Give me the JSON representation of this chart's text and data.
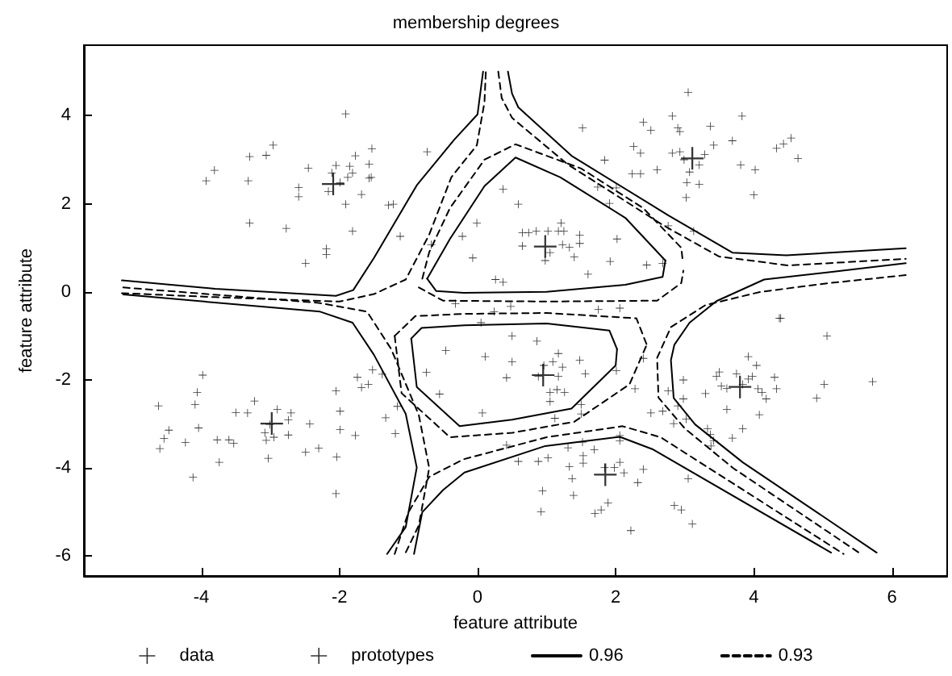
{
  "chart_data": {
    "type": "scatter",
    "title": "membership degrees",
    "xlabel": "feature attribute",
    "ylabel": "feature attribute",
    "xlim": [
      -5.7,
      6.8
    ],
    "ylim": [
      -6.45,
      5.6
    ],
    "xticks": [
      -4,
      -2,
      0,
      2,
      4,
      6
    ],
    "yticks": [
      -6,
      -4,
      -2,
      0,
      2,
      4
    ],
    "grid": false,
    "legend": "bottom",
    "series": [
      {
        "name": "data",
        "marker": "cross",
        "color": "#000000",
        "x": [
          -3.93,
          -3.81,
          -3.3,
          -3.32,
          -3.3,
          -3.06,
          -2.96,
          -2.77,
          -2.59,
          -2.59,
          -2.45,
          -2.49,
          -2.19,
          -2.19,
          -2.16,
          -2.11,
          -2.05,
          -1.99,
          -1.91,
          -1.91,
          -1.88,
          -1.85,
          -1.81,
          -1.81,
          -1.77,
          -1.68,
          -1.57,
          -1.57,
          -1.53,
          -1.54,
          -1.29,
          -1.22,
          -1.12,
          -0.73,
          -0.67,
          -0.22,
          -0.01,
          -0.07,
          3.05,
          1.52,
          1.84,
          2.4,
          2.51,
          2.82,
          2.9,
          2.93,
          3.37,
          3.83,
          2.26,
          2.36,
          2.82,
          2.93,
          3.29,
          3.42,
          3.69,
          2.99,
          3.21,
          3.07,
          2.24,
          2.36,
          2.6,
          3.81,
          4.02,
          3.03,
          3.21,
          3.02,
          4.0,
          4.33,
          4.43,
          4.54,
          4.64,
          1.74,
          2.01,
          1.91,
          2.76,
          3.13,
          0.37,
          0.59,
          0.65,
          0.74,
          0.85,
          1.02,
          1.17,
          1.25,
          1.21,
          1.48,
          1.48,
          0.65,
          1.23,
          1.33,
          0.98,
          1.05,
          1.4,
          1.6,
          2.02,
          1.92,
          2.45,
          2.68,
          0.26,
          0.37,
          4.37,
          0.48,
          0.24,
          -4.62,
          -4.6,
          -4.54,
          -4.47,
          -4.23,
          -4.12,
          -4.09,
          -4.06,
          -4.04,
          -3.98,
          -3.77,
          -3.74,
          -3.6,
          -3.53,
          -3.5,
          -3.33,
          -3.23,
          -3.08,
          -3.06,
          -3.03,
          -3.01,
          -2.95,
          -2.9,
          -2.74,
          -2.74,
          -2.7,
          -2.49,
          -2.43,
          -2.3,
          -2.05,
          -1.99,
          -1.99,
          -2.04,
          -2.05,
          -1.77,
          -1.74,
          -1.68,
          -1.58,
          -1.52,
          -1.38,
          -1.33,
          -1.19,
          -1.16,
          -0.74,
          -0.55,
          -0.46,
          -0.32,
          0.05,
          0.11,
          0.5,
          0.5,
          0.42,
          0.86,
          0.96,
          1.09,
          1.17,
          1.23,
          1.17,
          1.05,
          1.26,
          1.05,
          1.15,
          0.88,
          1.48,
          1.56,
          1.5,
          1.5,
          1.12,
          0.07,
          2.01,
          2.28,
          2.4,
          0.42,
          0.59,
          0.88,
          1.02,
          1.31,
          1.33,
          1.53,
          1.53,
          1.69,
          1.52,
          1.37,
          1.39,
          0.94,
          0.92,
          1.7,
          1.79,
          1.89,
          1.84,
          1.98,
          2.06,
          2.12,
          2.32,
          2.4,
          2.22,
          2.06,
          2.06,
          2.85,
          2.95,
          3.11,
          3.05,
          1.75,
          2.06,
          2.51,
          2.68,
          2.84,
          2.9,
          2.98,
          2.76,
          2.98,
          3.02,
          3.3,
          3.33,
          3.37,
          3.42,
          3.38,
          3.46,
          3.5,
          3.53,
          3.61,
          3.61,
          3.69,
          3.75,
          3.84,
          3.92,
          3.98,
          4.04,
          4.06,
          4.08,
          4.12,
          4.18,
          4.3,
          4.33,
          3.84,
          3.92,
          4.39,
          4.91,
          5.02,
          5.06,
          5.72
        ],
        "values": [
          2.52,
          2.76,
          3.07,
          2.52,
          1.56,
          3.1,
          3.33,
          1.44,
          2.37,
          2.16,
          2.81,
          0.65,
          0.98,
          0.85,
          2.28,
          2.7,
          2.87,
          2.48,
          4.04,
          1.99,
          2.6,
          2.85,
          2.7,
          1.38,
          3.09,
          2.21,
          2.9,
          2.58,
          3.25,
          2.6,
          1.97,
          1.99,
          1.26,
          3.18,
          1.07,
          1.26,
          1.56,
          0.77,
          4.53,
          3.72,
          2.99,
          3.85,
          3.67,
          3.99,
          3.72,
          3.64,
          3.76,
          3.99,
          3.3,
          3.15,
          3.15,
          3.18,
          3.12,
          3.33,
          3.43,
          3.0,
          2.88,
          2.72,
          2.68,
          2.68,
          2.77,
          2.88,
          2.77,
          2.48,
          2.44,
          2.14,
          2.2,
          3.26,
          3.36,
          3.49,
          3.03,
          2.38,
          2.36,
          2.01,
          1.5,
          1.38,
          2.33,
          1.99,
          1.34,
          1.34,
          1.38,
          1.38,
          1.38,
          1.38,
          1.56,
          1.29,
          1.1,
          1.04,
          1.07,
          1.01,
          0.71,
          0.89,
          0.79,
          0.4,
          1.2,
          0.69,
          0.61,
          0.65,
          0.28,
          0.22,
          -0.6,
          -0.33,
          -0.45,
          -2.59,
          -3.56,
          -3.33,
          -3.14,
          -3.42,
          -4.21,
          -2.56,
          -2.28,
          -3.09,
          -1.89,
          -3.36,
          -3.87,
          -3.36,
          -3.44,
          -2.74,
          -2.75,
          -2.48,
          -3.2,
          -3.37,
          -3.78,
          -3.01,
          -3.3,
          -2.67,
          -2.91,
          -3.25,
          -2.75,
          -3.64,
          -3.0,
          -3.55,
          -2.25,
          -2.71,
          -3.13,
          -3.75,
          -4.58,
          -3.26,
          -1.94,
          -2.17,
          -2.1,
          -1.77,
          -1.87,
          -2.86,
          -3.22,
          -2.6,
          -1.83,
          -2.32,
          -1.33,
          -0.27,
          -0.7,
          -1.47,
          -1.0,
          -1.59,
          -1.95,
          -1.12,
          -1.67,
          -1.59,
          -1.4,
          -1.71,
          -1.92,
          -2.28,
          -2.28,
          -2.49,
          -2.22,
          -1.92,
          -1.55,
          -1.86,
          -2.56,
          -2.77,
          -2.87,
          -2.75,
          -1.79,
          -2.2,
          -1.51,
          -3.48,
          -3.85,
          -3.85,
          -3.77,
          -3.54,
          -3.97,
          -3.72,
          -3.89,
          -3.58,
          -3.41,
          -4.24,
          -4.62,
          -4.52,
          -4.99,
          -5.03,
          -4.95,
          -4.79,
          -3.99,
          -3.99,
          -3.87,
          -4.11,
          -4.33,
          -4.03,
          -5.42,
          -3.26,
          -3.38,
          -4.85,
          -4.95,
          -5.27,
          -4.24,
          -0.4,
          -0.37,
          -2.75,
          -2.71,
          -2.99,
          -2.59,
          -2.43,
          -2.25,
          -2.0,
          -2.89,
          -2.31,
          -3.11,
          -3.24,
          -3.38,
          -3.5,
          -1.92,
          -1.82,
          -2.14,
          -2.19,
          -2.67,
          -3.32,
          -1.86,
          -3.11,
          -1.47,
          -1.92,
          -1.67,
          -2.2,
          -2.79,
          -2.28,
          -2.43,
          -1.94,
          -2.2,
          -2.1,
          -1.98,
          -0.6,
          -2.41,
          -2.1,
          -1.0,
          -2.04
        ]
      },
      {
        "name": "prototypes",
        "type": "scatter",
        "marker": "cross",
        "color": "#000000",
        "x": [
          -2.09,
          0.98,
          3.11,
          -2.98,
          0.95,
          3.8,
          1.85
        ],
        "values": [
          2.45,
          1.03,
          3.03,
          -2.99,
          -1.89,
          -2.16,
          -4.15
        ]
      },
      {
        "name": "0.96",
        "type": "line",
        "marker": "none",
        "line_style": "solid",
        "color": "#000000",
        "x": [
          -5.15,
          -3.8,
          -2.05,
          -1.8,
          -1.5,
          -0.88,
          -0.34,
          0,
          0.08
        ],
        "values": [
          0.26,
          0.07,
          -0.09,
          0.04,
          0.77,
          2.42,
          3.45,
          4.03,
          5.0
        ]
      },
      {
        "type": "line",
        "marker": "none",
        "line_style": "solid",
        "color": "#000000",
        "x": [
          -0.73,
          -0.4,
          0.1,
          0.55,
          1.2,
          2.14,
          2.72
        ],
        "values": [
          0.3,
          1.2,
          2.4,
          3.05,
          2.6,
          1.68,
          0.71
        ]
      },
      {
        "type": "line",
        "marker": "none",
        "line_style": "solid",
        "color": "#000000",
        "x": [
          -0.73,
          -0.6,
          -0.2,
          1.0,
          2.14,
          2.68,
          2.72
        ],
        "values": [
          0.3,
          0.02,
          -0.02,
          0.0,
          0.16,
          0.34,
          0.71
        ]
      },
      {
        "type": "line",
        "marker": "none",
        "line_style": "solid",
        "color": "#000000",
        "x": [
          0.44,
          0.5,
          0.59,
          1.36,
          2.76,
          3.69,
          4.47,
          6.2
        ],
        "values": [
          5.0,
          4.5,
          4.19,
          3.09,
          1.74,
          0.89,
          0.83,
          0.99
        ]
      },
      {
        "type": "line",
        "marker": "none",
        "line_style": "solid",
        "color": "#000000",
        "x": [
          6.2,
          5.16,
          4.15,
          3.46,
          3.07,
          2.85,
          2.8,
          2.84,
          3.15,
          3.84,
          5.78
        ],
        "values": [
          0.65,
          0.46,
          0.28,
          -0.21,
          -0.7,
          -1.2,
          -1.55,
          -2.41,
          -3.01,
          -3.87,
          -5.92
        ]
      },
      {
        "type": "line",
        "marker": "none",
        "line_style": "solid",
        "color": "#000000",
        "x": [
          -0.92,
          -0.8,
          -0.5,
          -0.19,
          0.98,
          2.06,
          2.53,
          5.12
        ],
        "values": [
          -5.95,
          -5.0,
          -4.5,
          -4.1,
          -3.5,
          -3.29,
          -3.57,
          -5.92
        ]
      },
      {
        "type": "line",
        "marker": "none",
        "line_style": "solid",
        "color": "#000000",
        "x": [
          -5.13,
          -2.28,
          -1.81,
          -1.5,
          -1.04,
          -0.88,
          -1.04,
          -1.31
        ],
        "values": [
          -0.06,
          -0.45,
          -0.7,
          -1.43,
          -2.77,
          -3.99,
          -5.34,
          -5.95
        ]
      },
      {
        "type": "line",
        "marker": "none",
        "line_style": "solid",
        "color": "#000000",
        "x": [
          -0.96,
          -0.81,
          -0.19,
          1.0,
          1.91,
          2.02
        ],
        "values": [
          -1.06,
          -0.82,
          -0.76,
          -0.72,
          -0.88,
          -1.3
        ]
      },
      {
        "type": "line",
        "marker": "none",
        "line_style": "solid",
        "color": "#000000",
        "x": [
          -0.96,
          -0.88,
          -0.26,
          0.5,
          1.36,
          2.0,
          2.02
        ],
        "values": [
          -1.06,
          -2.16,
          -3.05,
          -2.9,
          -2.65,
          -1.67,
          -1.3
        ]
      },
      {
        "name": "0.93",
        "type": "line",
        "marker": "none",
        "line_style": "dashed",
        "color": "#000000",
        "x": [
          -5.15,
          -3.8,
          -2.0,
          -1.5,
          -1.04,
          -0.7,
          -0.38,
          -0.01,
          0.1,
          0.12
        ],
        "values": [
          -0.03,
          -0.12,
          -0.22,
          -0.05,
          0.28,
          1.3,
          2.6,
          3.33,
          4.3,
          5.0
        ]
      },
      {
        "type": "line",
        "marker": "none",
        "line_style": "dashed",
        "color": "#000000",
        "x": [
          -0.8,
          -0.7,
          -0.4,
          0.1,
          0.55,
          1.5,
          2.4,
          2.95,
          2.97
        ],
        "values": [
          0.3,
          0.9,
          1.9,
          3.0,
          3.35,
          2.8,
          1.9,
          1.0,
          0.72
        ]
      },
      {
        "type": "line",
        "marker": "none",
        "line_style": "dashed",
        "color": "#000000",
        "x": [
          -0.85,
          -0.5,
          1.0,
          2.6,
          2.95,
          2.98
        ],
        "values": [
          0.1,
          -0.2,
          -0.22,
          -0.2,
          0.2,
          0.48
        ]
      },
      {
        "type": "line",
        "marker": "none",
        "line_style": "dashed",
        "color": "#000000",
        "x": [
          0.3,
          0.35,
          0.5,
          1.3,
          2.7,
          3.5,
          4.5,
          6.2
        ],
        "values": [
          5.0,
          4.4,
          3.95,
          2.9,
          1.5,
          0.8,
          0.6,
          0.75
        ]
      },
      {
        "type": "line",
        "marker": "none",
        "line_style": "dashed",
        "color": "#000000",
        "x": [
          6.2,
          5.1,
          4.1,
          3.3,
          2.8,
          2.6,
          2.62,
          3.0,
          3.7,
          5.55
        ],
        "values": [
          0.38,
          0.2,
          0.0,
          -0.3,
          -0.8,
          -1.5,
          -2.4,
          -3.1,
          -4.0,
          -5.95
        ]
      },
      {
        "type": "line",
        "marker": "none",
        "line_style": "dashed",
        "color": "#000000",
        "x": [
          -1.2,
          -1.0,
          -0.7,
          -0.2,
          1.0,
          2.1,
          2.65,
          5.3
        ],
        "values": [
          -5.95,
          -5.0,
          -4.2,
          -3.8,
          -3.3,
          -3.05,
          -3.3,
          -5.95
        ]
      },
      {
        "type": "line",
        "marker": "none",
        "line_style": "dashed",
        "color": "#000000",
        "x": [
          -5.13,
          -2.3,
          -1.6,
          -1.25,
          -0.85,
          -0.7,
          -0.85,
          -1.05
        ],
        "values": [
          0.1,
          -0.25,
          -0.45,
          -1.3,
          -2.8,
          -4.0,
          -5.3,
          -5.95
        ]
      },
      {
        "type": "line",
        "marker": "none",
        "line_style": "dashed",
        "color": "#000000",
        "x": [
          -1.2,
          -0.9,
          -0.2,
          1.0,
          2.3,
          2.45
        ],
        "values": [
          -1.0,
          -0.55,
          -0.5,
          -0.48,
          -0.6,
          -1.2
        ]
      },
      {
        "type": "line",
        "marker": "none",
        "line_style": "dashed",
        "color": "#000000",
        "x": [
          -1.2,
          -1.1,
          -0.4,
          0.5,
          1.4,
          2.2,
          2.45
        ],
        "values": [
          -1.0,
          -2.3,
          -3.3,
          -3.2,
          -2.95,
          -2.1,
          -1.2
        ]
      }
    ]
  }
}
